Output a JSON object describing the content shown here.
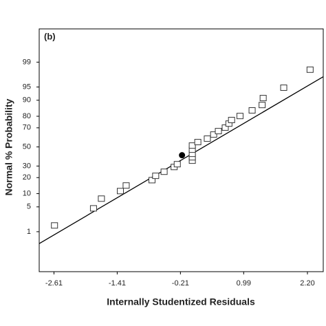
{
  "chart_data": {
    "type": "normal-probability",
    "panel_label": "(b)",
    "x_label": "Internally Studentized Residuals",
    "y_label": "Normal % Probability",
    "yscale": "probit",
    "xlim": [
      -2.89,
      2.5
    ],
    "ylim": [
      0.031,
      99.94
    ],
    "xticks": [
      -2.61,
      -1.41,
      -0.21,
      0.99,
      {
        "value": 2.2,
        "label": "2.20"
      }
    ],
    "yticks": [
      1,
      5,
      10,
      20,
      30,
      50,
      70,
      80,
      90,
      95,
      99
    ],
    "points": {
      "x": [
        -2.6,
        -1.86,
        -1.71,
        -1.35,
        -1.24,
        -0.75,
        -0.68,
        -0.52,
        -0.33,
        -0.27,
        0.015,
        0.015,
        0.015,
        0.015,
        0.015,
        0.12,
        0.3,
        0.42,
        0.51,
        0.64,
        0.71,
        0.76,
        0.92,
        1.15,
        1.34,
        1.36,
        1.75,
        2.25
      ],
      "y": [
        1.56,
        4.6,
        7.8,
        11.3,
        14.5,
        18.1,
        21.4,
        24.8,
        29.1,
        31.8,
        35.3,
        38.8,
        42.5,
        47,
        51.5,
        55.3,
        59,
        63.3,
        66.8,
        70.2,
        73.9,
        77,
        80.2,
        84.2,
        87.5,
        91,
        94.8,
        98.3
      ],
      "color": "#333333"
    },
    "highlight": {
      "x": -0.18,
      "y": 41,
      "color": "#000000"
    },
    "fit_line": {
      "x": [
        -2.89,
        2.5
      ],
      "y": [
        0.4,
        97.3
      ],
      "color": "#000000"
    }
  }
}
